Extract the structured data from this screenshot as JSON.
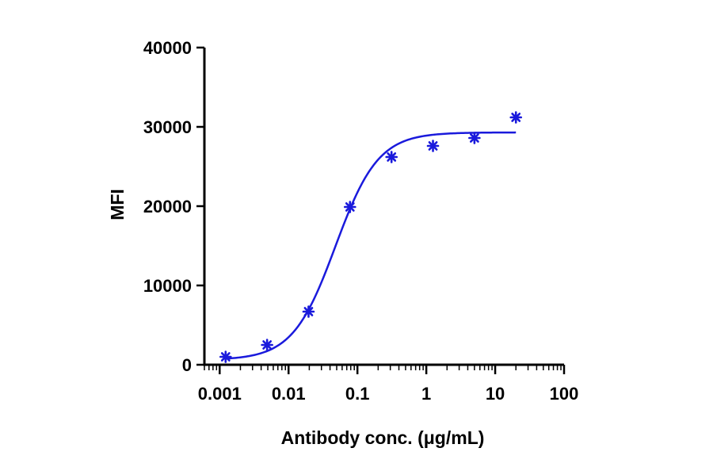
{
  "chart_data": {
    "type": "scatter",
    "xlabel": "Antibody conc. (μg/mL)",
    "ylabel": "MFI",
    "xscale": "log",
    "xlim": [
      0.0006,
      100
    ],
    "ylim": [
      0,
      40000
    ],
    "xticks": [
      {
        "value": 0.001,
        "label": "0.001"
      },
      {
        "value": 0.01,
        "label": "0.01"
      },
      {
        "value": 0.1,
        "label": "0.1"
      },
      {
        "value": 1,
        "label": "1"
      },
      {
        "value": 10,
        "label": "10"
      },
      {
        "value": 100,
        "label": "100"
      }
    ],
    "yticks": [
      {
        "value": 0,
        "label": "0"
      },
      {
        "value": 10000,
        "label": "10000"
      },
      {
        "value": 20000,
        "label": "20000"
      },
      {
        "value": 30000,
        "label": "30000"
      },
      {
        "value": 40000,
        "label": "40000"
      }
    ],
    "grid": false,
    "legend": "none",
    "series": [
      {
        "points": [
          {
            "x": 0.00122,
            "y": 1000
          },
          {
            "x": 0.00488,
            "y": 2500
          },
          {
            "x": 0.0195,
            "y": 6700
          },
          {
            "x": 0.078,
            "y": 19900
          },
          {
            "x": 0.3125,
            "y": 26200
          },
          {
            "x": 1.25,
            "y": 27600
          },
          {
            "x": 5,
            "y": 28600
          },
          {
            "x": 20,
            "y": 31200
          }
        ],
        "color": "#1a1adc",
        "marker": "asterisk"
      }
    ],
    "fit": {
      "model": "4PL",
      "bottom": 600,
      "top": 29300,
      "ec50": 0.048,
      "hill": 1.4,
      "x_range": [
        0.00122,
        20
      ],
      "color": "#1a1adc"
    }
  }
}
